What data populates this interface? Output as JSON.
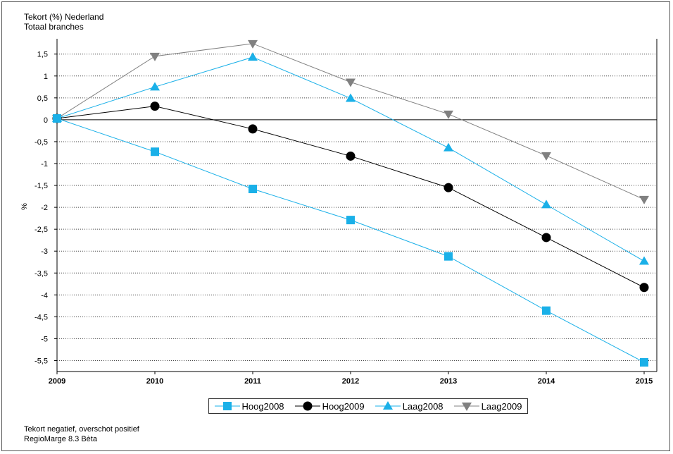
{
  "chart_data": {
    "type": "line",
    "title": "Tekort (%) Nederland",
    "subtitle": "Totaal branches",
    "ylabel": "%",
    "xlabel": "",
    "x": [
      "2009",
      "2010",
      "2011",
      "2012",
      "2013",
      "2014",
      "2015"
    ],
    "ylim": [
      -5.75,
      1.85
    ],
    "yticks": [
      1.5,
      1,
      0.5,
      0,
      -0.5,
      -1,
      -1.5,
      -2,
      -2.5,
      -3,
      -3.5,
      -4,
      -4.5,
      -5,
      -5.5
    ],
    "ytick_labels": [
      "1,5",
      "1",
      "0,5",
      "0",
      "-0,5",
      "-1",
      "-1,5",
      "-2",
      "-2,5",
      "-3",
      "-3,5",
      "-4",
      "-4,5",
      "-5",
      "-5,5"
    ],
    "grid": "horizontal dotted",
    "legend_position": "bottom",
    "series": [
      {
        "name": "Hoog2008",
        "color": "#1ab0e8",
        "marker": "square",
        "values": [
          0.03,
          -0.73,
          -1.58,
          -2.29,
          -3.12,
          -4.36,
          -5.54
        ]
      },
      {
        "name": "Hoog2009",
        "color": "#000000",
        "marker": "circle",
        "values": [
          0.03,
          0.31,
          -0.21,
          -0.83,
          -1.55,
          -2.69,
          -3.83
        ]
      },
      {
        "name": "Laag2008",
        "color": "#1ab0e8",
        "marker": "triangle-up",
        "values": [
          0.03,
          0.75,
          1.43,
          0.49,
          -0.64,
          -1.94,
          -3.23
        ]
      },
      {
        "name": "Laag2009",
        "color": "#808080",
        "marker": "triangle-down",
        "values": [
          0.03,
          1.45,
          1.74,
          0.86,
          0.13,
          -0.82,
          -1.82
        ]
      }
    ]
  },
  "footer": {
    "note": "Tekort negatief, overschot positief",
    "version": "RegioMarge 8.3 Bèta"
  }
}
